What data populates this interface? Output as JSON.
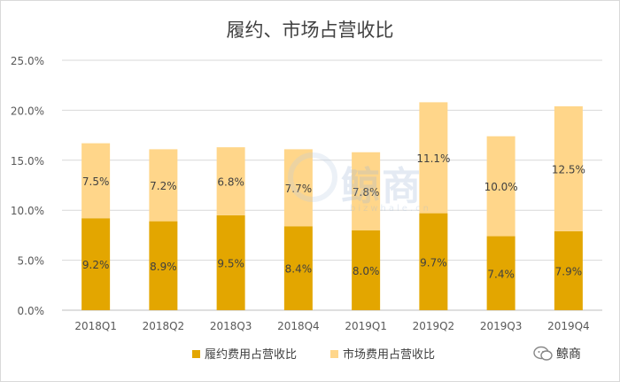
{
  "chart_data": {
    "type": "bar",
    "stacked": true,
    "title": "履约、市场占营收比",
    "categories": [
      "2018Q1",
      "2018Q2",
      "2018Q3",
      "2018Q4",
      "2019Q1",
      "2019Q2",
      "2019Q3",
      "2019Q4"
    ],
    "series": [
      {
        "name": "履约费用占营收比",
        "values": [
          9.2,
          8.9,
          9.5,
          8.4,
          8.0,
          9.7,
          7.4,
          7.9
        ],
        "labels": [
          "9.2%",
          "8.9%",
          "9.5%",
          "8.4%",
          "8.0%",
          "9.7%",
          "7.4%",
          "7.9%"
        ],
        "color": "#E3A600"
      },
      {
        "name": "市场费用占营收比",
        "values": [
          7.5,
          7.2,
          6.8,
          7.7,
          7.8,
          11.1,
          10.0,
          12.5
        ],
        "labels": [
          "7.5%",
          "7.2%",
          "6.8%",
          "7.7%",
          "7.8%",
          "11.1%",
          "10.0%",
          "12.5%"
        ],
        "color": "#FFD68A"
      }
    ],
    "ylim": [
      0,
      25
    ],
    "y_ticks": [
      0,
      5,
      10,
      15,
      20,
      25
    ],
    "y_tick_labels": [
      "0.0%",
      "5.0%",
      "10.0%",
      "15.0%",
      "20.0%",
      "25.0%"
    ],
    "grid": true,
    "legend_position": "bottom"
  },
  "watermark": {
    "text": "鲸商",
    "url": "bizwhale.cn"
  },
  "badge": {
    "label": "鲸商"
  }
}
